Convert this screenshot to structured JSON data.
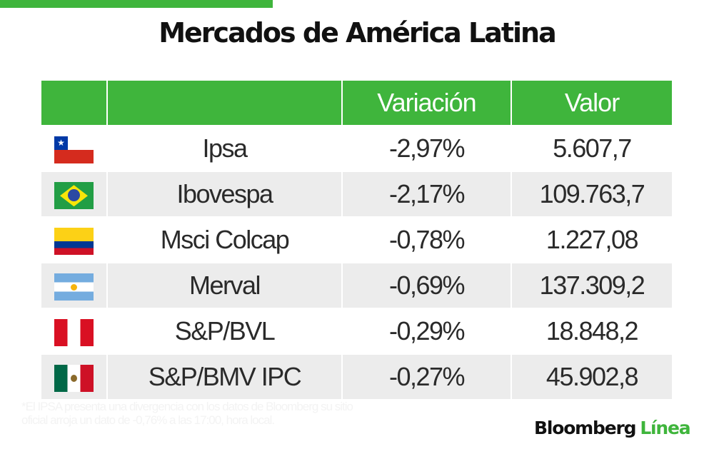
{
  "title": "Mercados de América Latina",
  "table": {
    "headers": [
      "",
      "",
      "Variación",
      "Valor"
    ],
    "rows": [
      {
        "flag": "chile-flag",
        "name": "Ipsa",
        "variacion": "-2,97%",
        "valor": "5.607,7"
      },
      {
        "flag": "brazil-flag",
        "name": "Ibovespa",
        "variacion": "-2,17%",
        "valor": "109.763,7"
      },
      {
        "flag": "colombia-flag",
        "name": "Msci Colcap",
        "variacion": "-0,78%",
        "valor": "1.227,08"
      },
      {
        "flag": "argentina-flag",
        "name": "Merval",
        "variacion": "-0,69%",
        "valor": "137.309,2"
      },
      {
        "flag": "peru-flag",
        "name": "S&P/BVL",
        "variacion": "-0,29%",
        "valor": "18.848,2"
      },
      {
        "flag": "mexico-flag",
        "name": "S&P/BMV IPC",
        "variacion": "-0,27%",
        "valor": "45.902,8"
      }
    ]
  },
  "footnote": "*El IPSA presenta una divergencia con los datos de Bloomberg su sitio oficial arroja un dato de -0,76% a las 17:00, hora local.",
  "logo": {
    "part1": "Bloomberg",
    "part2": "Línea"
  },
  "colors": {
    "accent": "#3fb53c",
    "row_alt": "#ececec",
    "text": "#2a2a2a"
  }
}
